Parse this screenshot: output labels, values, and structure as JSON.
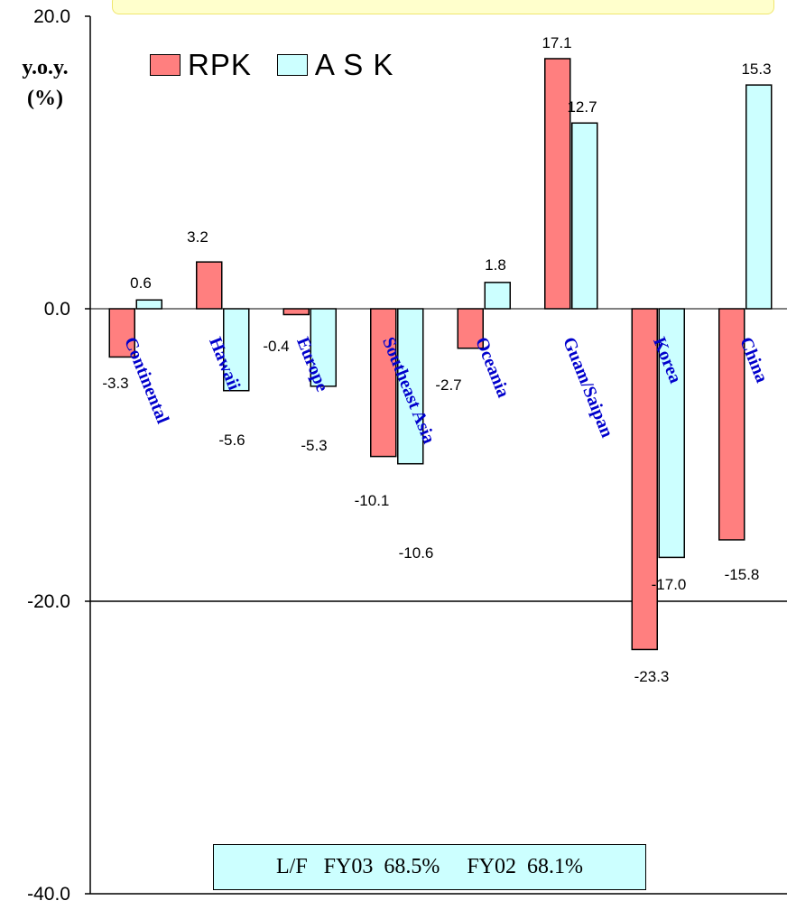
{
  "chart_data": {
    "type": "bar",
    "ylabel_line1": "y.o.y.",
    "ylabel_line2": "(%)",
    "ylim": [
      -40,
      20
    ],
    "yticks": [
      "20.0",
      "0.0",
      "-20.0",
      "-40.0"
    ],
    "grid": "horizontal at -20",
    "legend_position": "top-left",
    "categories": [
      "Continental",
      "Hawaii",
      "Europe",
      "Southeast Asia",
      "Oceania",
      "Guam/Saipan",
      "Korea",
      "China"
    ],
    "series": [
      {
        "name": "RPK",
        "color": "#ff7f7f",
        "values": [
          -3.3,
          3.2,
          -0.4,
          -10.1,
          -2.7,
          17.1,
          -23.3,
          -15.8
        ],
        "labels": [
          "-3.3",
          "3.2",
          "-0.4",
          "-10.1",
          "-2.7",
          "17.1",
          "-23.3",
          "-15.8"
        ]
      },
      {
        "name": "A S K",
        "color": "#ccffff",
        "values": [
          0.6,
          -5.6,
          -5.3,
          -10.6,
          1.8,
          12.7,
          -17.0,
          15.3
        ],
        "labels": [
          "0.6",
          "-5.6",
          "-5.3",
          "-10.6",
          "1.8",
          "12.7",
          "-17.0",
          "15.3"
        ]
      }
    ],
    "category_label_color": "#0000cc",
    "note": "L/F   FY03  68.5%     FY02  68.1%"
  }
}
